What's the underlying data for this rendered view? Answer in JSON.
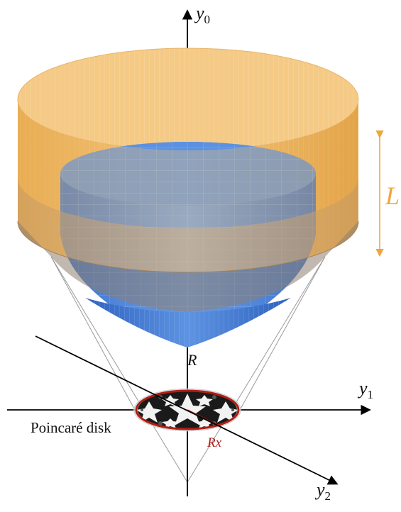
{
  "labels": {
    "y0": "y",
    "y0_sub": "0",
    "y1": "y",
    "y1_sub": "1",
    "y2": "y",
    "y2_sub": "2",
    "R": "R",
    "L": "L",
    "poincare": "Poincaré disk",
    "Rx": "Rx"
  },
  "colors": {
    "orange_surface": "#f2b95f",
    "orange_dark": "#d89a3c",
    "blue_surface": "#4f86db",
    "blue_dark": "#2f64c2",
    "L_arrow": "#f0a63c",
    "disk_rim": "#b01e14",
    "axis": "#000000",
    "guide_lines": "#9a9a9a"
  }
}
